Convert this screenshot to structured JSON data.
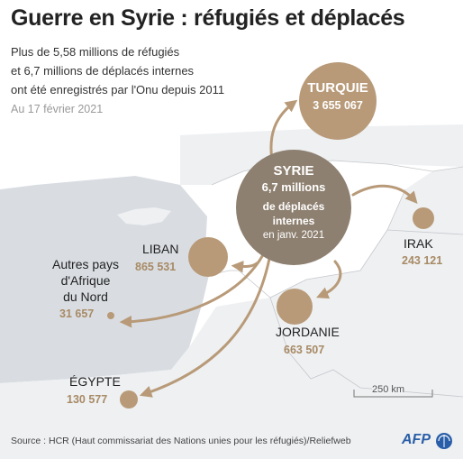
{
  "title": "Guerre en Syrie : réfugiés et déplacés",
  "subtitle_lines": [
    "Plus de 5,58 millions de réfugiés",
    "et 6,7 millions de déplacés internes",
    "ont été enregistrés par l'Onu depuis 2011"
  ],
  "date": "Au 17 février 2021",
  "syria": {
    "name": "SYRIE",
    "value": "6,7 millions",
    "label_line1": "de déplacés",
    "label_line2": "internes",
    "date": "en janv. 2021"
  },
  "destinations": {
    "turquie": {
      "name": "TURQUIE",
      "value": "3 655 067",
      "refugees": 3655067
    },
    "liban": {
      "name": "LIBAN",
      "value": "865 531",
      "refugees": 865531
    },
    "jordanie": {
      "name": "JORDANIE",
      "value": "663 507",
      "refugees": 663507
    },
    "irak": {
      "name": "IRAK",
      "value": "243 121",
      "refugees": 243121
    },
    "afrique_nord": {
      "name_lines": [
        "Autres pays",
        "d'Afrique",
        "du Nord"
      ],
      "value": "31 657",
      "refugees": 31657
    },
    "egypte": {
      "name": "ÉGYPTE",
      "value": "130 577",
      "refugees": 130577
    }
  },
  "scale_label": "250 km",
  "source": "Source : HCR (Haut commissariat des Nations unies pour les réfugiés)/Reliefweb",
  "logo_text": "AFP",
  "colors": {
    "circle": "#b89a78",
    "syria_circle": "#8e8070",
    "value_text": "#a88a65",
    "sea": "#d9dde2",
    "land": "#eef0f2",
    "syria_land": "#ffffff"
  }
}
